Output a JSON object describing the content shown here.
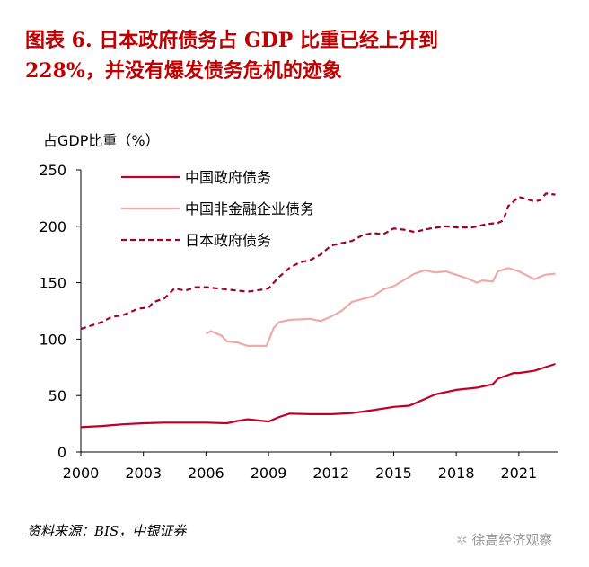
{
  "title_line1": "图表 6. 日本政府债务占 GDP 比重已经上升到",
  "title_line2": "228%，并没有爆发债务危机的迹象",
  "source": "资料来源：BIS，中银证券",
  "watermark": "徐高经济观察",
  "chart_data": {
    "type": "line",
    "ylabel": "占GDP比重（%）",
    "ylim": [
      0,
      250
    ],
    "xlim": [
      2000,
      2022.9
    ],
    "yticks": [
      0,
      50,
      100,
      150,
      200,
      250
    ],
    "xticks": [
      2000,
      2003,
      2006,
      2009,
      2012,
      2015,
      2018,
      2021
    ],
    "grid": false,
    "legend": "top-left",
    "series": [
      {
        "name": "中国政府债务",
        "color": "#c00026",
        "style": "solid",
        "x": [
          2000,
          2001,
          2002,
          2003,
          2004,
          2005,
          2006,
          2007,
          2007.5,
          2008,
          2008.5,
          2009,
          2009.5,
          2010,
          2011,
          2012,
          2013,
          2014,
          2015,
          2015.75,
          2016.5,
          2017,
          2018,
          2019,
          2019.75,
          2020,
          2020.75,
          2021,
          2021.75,
          2022.75
        ],
        "y": [
          22,
          23,
          24.5,
          25.5,
          26,
          26,
          26,
          25.5,
          27.5,
          29,
          28,
          27,
          31,
          34,
          33.5,
          33.5,
          34.5,
          37,
          40,
          41,
          47,
          51,
          55,
          57,
          60,
          65,
          70,
          70,
          72,
          78
        ]
      },
      {
        "name": "中国非金融企业债务",
        "color": "#f0a8a8",
        "style": "solid",
        "x": [
          2006,
          2006.25,
          2006.75,
          2007,
          2007.5,
          2008,
          2008.5,
          2008.9,
          2009.25,
          2009.5,
          2010,
          2011,
          2011.5,
          2012,
          2012.5,
          2013,
          2014,
          2014.5,
          2015,
          2016,
          2016.5,
          2017,
          2017.5,
          2018,
          2018.5,
          2019,
          2019.25,
          2019.75,
          2020,
          2020.5,
          2021,
          2021.75,
          2022.25,
          2022.75
        ],
        "y": [
          105,
          107,
          103,
          98,
          97,
          94,
          94,
          94,
          110,
          115,
          117,
          118,
          116,
          120,
          125,
          133,
          138,
          144,
          147,
          158,
          161,
          159,
          160,
          157,
          154,
          150,
          152,
          151,
          160,
          163,
          160,
          153,
          157,
          158
        ]
      },
      {
        "name": "日本政府债务",
        "color": "#a0002a",
        "style": "dashed",
        "x": [
          2000,
          2000.5,
          2001,
          2001.5,
          2002,
          2002.75,
          2003.25,
          2003.5,
          2004,
          2004.5,
          2005,
          2005.5,
          2006,
          2007,
          2008,
          2008.75,
          2009,
          2009.5,
          2010,
          2010.5,
          2011,
          2011.5,
          2012,
          2013,
          2013.5,
          2014,
          2014.5,
          2015,
          2015.5,
          2016,
          2016.75,
          2017.5,
          2018,
          2018.75,
          2019.5,
          2020,
          2020.25,
          2020.5,
          2021,
          2021.75,
          2022,
          2022.3,
          2022.75
        ],
        "y": [
          109,
          112,
          115,
          120,
          121,
          127,
          128,
          133,
          136,
          145,
          143,
          146,
          146,
          144,
          142,
          144,
          145,
          155,
          163,
          168,
          170,
          175,
          183,
          187,
          192,
          194,
          193,
          198,
          197,
          195,
          198,
          200,
          199,
          199,
          202,
          203,
          205,
          218,
          226,
          222,
          223,
          229,
          228
        ]
      }
    ]
  }
}
